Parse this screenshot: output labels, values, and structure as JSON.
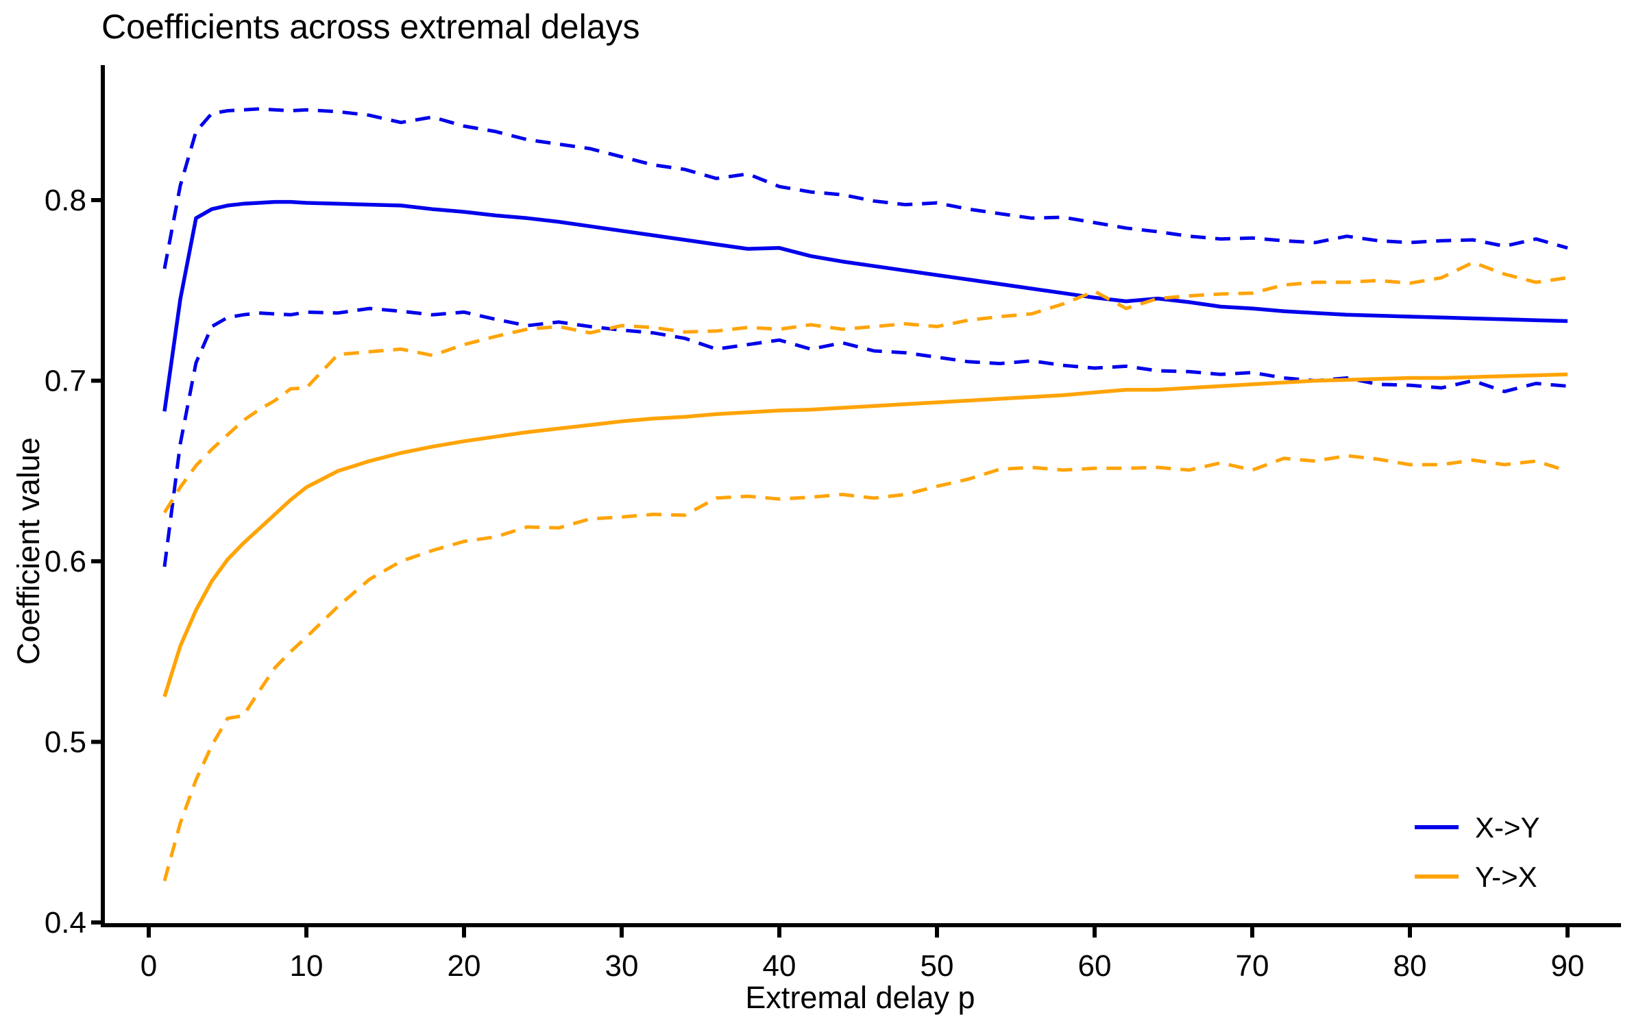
{
  "chart_data": {
    "type": "line",
    "title": "Coefficients across extremal delays",
    "xlabel": "Extremal delay p",
    "ylabel": "Coefficient value",
    "xlim": [
      -3,
      93
    ],
    "ylim": [
      0.4,
      0.87
    ],
    "grid": false,
    "legend_position": "bottom-right",
    "x_ticks": [
      0,
      10,
      20,
      30,
      40,
      50,
      60,
      70,
      80,
      90
    ],
    "x_tick_labels": [
      "0",
      "10",
      "20",
      "30",
      "40",
      "50",
      "60",
      "70",
      "80",
      "90"
    ],
    "y_ticks": [
      0.4,
      0.5,
      0.6,
      0.7,
      0.8
    ],
    "y_tick_labels": [
      "0.4",
      "0.5",
      "0.6",
      "0.7",
      "0.8"
    ],
    "colors": {
      "x_to_y": "#0000EB",
      "y_to_x": "#FFA408",
      "axis": "#000000"
    },
    "x": [
      1,
      2,
      3,
      4,
      5,
      6,
      7,
      8,
      9,
      10,
      12,
      14,
      16,
      18,
      20,
      22,
      24,
      26,
      28,
      30,
      32,
      34,
      36,
      38,
      40,
      42,
      44,
      46,
      48,
      50,
      52,
      54,
      56,
      58,
      60,
      62,
      64,
      66,
      68,
      70,
      72,
      74,
      76,
      78,
      80,
      82,
      84,
      86,
      88,
      90
    ],
    "series": [
      {
        "name": "X->Y mean",
        "color_key": "x_to_y",
        "style": "solid",
        "values": [
          0.683,
          0.745,
          0.79,
          0.795,
          0.797,
          0.798,
          0.7985,
          0.799,
          0.799,
          0.7985,
          0.798,
          0.7975,
          0.797,
          0.795,
          0.7935,
          0.7915,
          0.79,
          0.788,
          0.7855,
          0.783,
          0.7805,
          0.778,
          0.7755,
          0.773,
          0.7735,
          0.769,
          0.766,
          0.7635,
          0.761,
          0.7585,
          0.756,
          0.7535,
          0.751,
          0.7485,
          0.746,
          0.744,
          0.7455,
          0.7435,
          0.741,
          0.74,
          0.7385,
          0.7375,
          0.7365,
          0.736,
          0.7355,
          0.735,
          0.7345,
          0.734,
          0.7335,
          0.733
        ]
      },
      {
        "name": "X->Y upper band",
        "color_key": "x_to_y",
        "style": "dashed",
        "values": [
          0.762,
          0.808,
          0.838,
          0.848,
          0.8495,
          0.85,
          0.8505,
          0.85,
          0.8495,
          0.85,
          0.849,
          0.847,
          0.843,
          0.846,
          0.841,
          0.838,
          0.8335,
          0.831,
          0.8285,
          0.824,
          0.8195,
          0.817,
          0.812,
          0.8145,
          0.8075,
          0.8045,
          0.803,
          0.7995,
          0.7975,
          0.7985,
          0.795,
          0.7925,
          0.79,
          0.7905,
          0.7875,
          0.7845,
          0.7825,
          0.78,
          0.7785,
          0.779,
          0.7775,
          0.7765,
          0.78,
          0.7775,
          0.7765,
          0.7775,
          0.778,
          0.7745,
          0.7785,
          0.7735
        ]
      },
      {
        "name": "X->Y lower band",
        "color_key": "x_to_y",
        "style": "dashed",
        "values": [
          0.597,
          0.665,
          0.71,
          0.73,
          0.735,
          0.7365,
          0.7375,
          0.737,
          0.7365,
          0.738,
          0.7375,
          0.74,
          0.7385,
          0.7365,
          0.738,
          0.734,
          0.7305,
          0.7325,
          0.73,
          0.728,
          0.7265,
          0.7235,
          0.7175,
          0.72,
          0.7225,
          0.7175,
          0.721,
          0.7165,
          0.7155,
          0.713,
          0.7105,
          0.7095,
          0.711,
          0.7085,
          0.707,
          0.708,
          0.7055,
          0.705,
          0.7035,
          0.7045,
          0.7015,
          0.7,
          0.7015,
          0.698,
          0.6975,
          0.696,
          0.7,
          0.694,
          0.6985,
          0.697
        ]
      },
      {
        "name": "Y->X mean",
        "color_key": "y_to_x",
        "style": "solid",
        "values": [
          0.525,
          0.553,
          0.573,
          0.589,
          0.601,
          0.61,
          0.618,
          0.626,
          0.634,
          0.641,
          0.65,
          0.6555,
          0.66,
          0.6635,
          0.6665,
          0.669,
          0.6715,
          0.6735,
          0.6755,
          0.6775,
          0.679,
          0.68,
          0.6815,
          0.6825,
          0.6835,
          0.684,
          0.685,
          0.686,
          0.687,
          0.688,
          0.689,
          0.69,
          0.691,
          0.692,
          0.6935,
          0.695,
          0.695,
          0.696,
          0.697,
          0.698,
          0.699,
          0.7,
          0.7005,
          0.701,
          0.7015,
          0.7015,
          0.702,
          0.7025,
          0.703,
          0.7035
        ]
      },
      {
        "name": "Y->X upper band",
        "color_key": "y_to_x",
        "style": "dashed",
        "values": [
          0.627,
          0.641,
          0.653,
          0.662,
          0.67,
          0.678,
          0.684,
          0.689,
          0.6955,
          0.696,
          0.7145,
          0.716,
          0.7175,
          0.714,
          0.72,
          0.7245,
          0.7285,
          0.73,
          0.7265,
          0.7305,
          0.7295,
          0.727,
          0.7275,
          0.7295,
          0.7285,
          0.731,
          0.7285,
          0.73,
          0.7315,
          0.73,
          0.7335,
          0.7355,
          0.737,
          0.7425,
          0.7495,
          0.74,
          0.7455,
          0.747,
          0.748,
          0.7485,
          0.753,
          0.7545,
          0.7545,
          0.7555,
          0.754,
          0.757,
          0.7655,
          0.759,
          0.7545,
          0.757
        ]
      },
      {
        "name": "Y->X lower band",
        "color_key": "y_to_x",
        "style": "dashed",
        "values": [
          0.423,
          0.455,
          0.479,
          0.498,
          0.513,
          0.5145,
          0.528,
          0.541,
          0.55,
          0.558,
          0.575,
          0.59,
          0.6,
          0.606,
          0.611,
          0.6135,
          0.619,
          0.6185,
          0.6235,
          0.6245,
          0.626,
          0.6255,
          0.635,
          0.636,
          0.6345,
          0.6355,
          0.637,
          0.635,
          0.637,
          0.6415,
          0.6455,
          0.651,
          0.652,
          0.6505,
          0.6515,
          0.6515,
          0.652,
          0.6505,
          0.6545,
          0.6505,
          0.657,
          0.6555,
          0.6585,
          0.6565,
          0.6535,
          0.6535,
          0.656,
          0.6535,
          0.6555,
          0.65
        ]
      }
    ],
    "legend": [
      {
        "label": "X->Y",
        "color_key": "x_to_y"
      },
      {
        "label": "Y->X",
        "color_key": "y_to_x"
      }
    ]
  }
}
